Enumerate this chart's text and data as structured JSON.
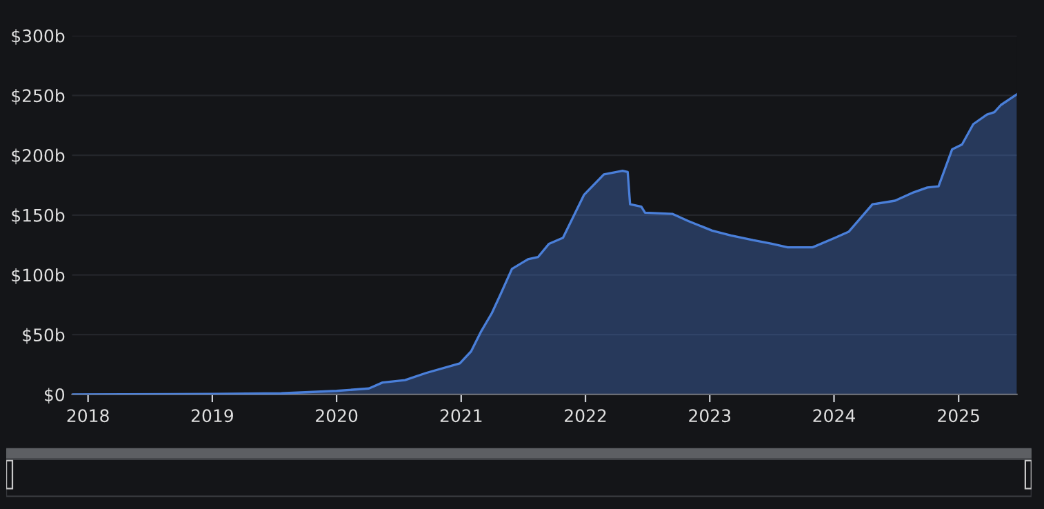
{
  "chart_data": {
    "type": "area",
    "color": "#4a7fd9",
    "grid": "y",
    "x": [
      "2017-11-15",
      "2019-01-01",
      "2019-07-23",
      "2020-01-01",
      "2020-04-05",
      "2020-05-15",
      "2020-07-20",
      "2020-09-20",
      "2020-12-28",
      "2021-01-30",
      "2021-03-01",
      "2021-04-01",
      "2021-04-27",
      "2021-05-30",
      "2021-07-16",
      "2021-08-15",
      "2021-09-16",
      "2021-10-27",
      "2021-12-28",
      "2022-02-24",
      "2022-04-20",
      "2022-05-05",
      "2022-05-12",
      "2022-06-14",
      "2022-06-25",
      "2022-09-13",
      "2022-10-30",
      "2023-01-08",
      "2023-03-04",
      "2023-05-08",
      "2023-07-02",
      "2023-08-18",
      "2023-10-30",
      "2024-01-04",
      "2024-02-13",
      "2024-04-23",
      "2024-06-28",
      "2024-08-22",
      "2024-10-01",
      "2024-11-03",
      "2024-12-13",
      "2025-01-11",
      "2025-02-13",
      "2025-03-25",
      "2025-04-16",
      "2025-05-05",
      "2025-06-21"
    ],
    "values": [
      0,
      0.5,
      1,
      3,
      5,
      10,
      12,
      18,
      26,
      36,
      53,
      68,
      84,
      105,
      113,
      115,
      126,
      131,
      167,
      184,
      187,
      186,
      159,
      157,
      152,
      151,
      145,
      137,
      133,
      129,
      126,
      123,
      123,
      131,
      136,
      159,
      162,
      169,
      173,
      174,
      205,
      209,
      226,
      234,
      236,
      242,
      251
    ],
    "xlim": [
      "2017-11-15",
      "2025-06-21"
    ],
    "xticks": [
      "2018",
      "2019",
      "2020",
      "2021",
      "2022",
      "2023",
      "2024",
      "2025"
    ],
    "ylim": [
      0,
      300
    ],
    "yticks": [
      {
        "value": 0,
        "label": "$0"
      },
      {
        "value": 50,
        "label": "$50b"
      },
      {
        "value": 100,
        "label": "$100b"
      },
      {
        "value": 150,
        "label": "$150b"
      },
      {
        "value": 200,
        "label": "$200b"
      },
      {
        "value": 250,
        "label": "$250b"
      },
      {
        "value": 300,
        "label": "$300b"
      }
    ]
  }
}
